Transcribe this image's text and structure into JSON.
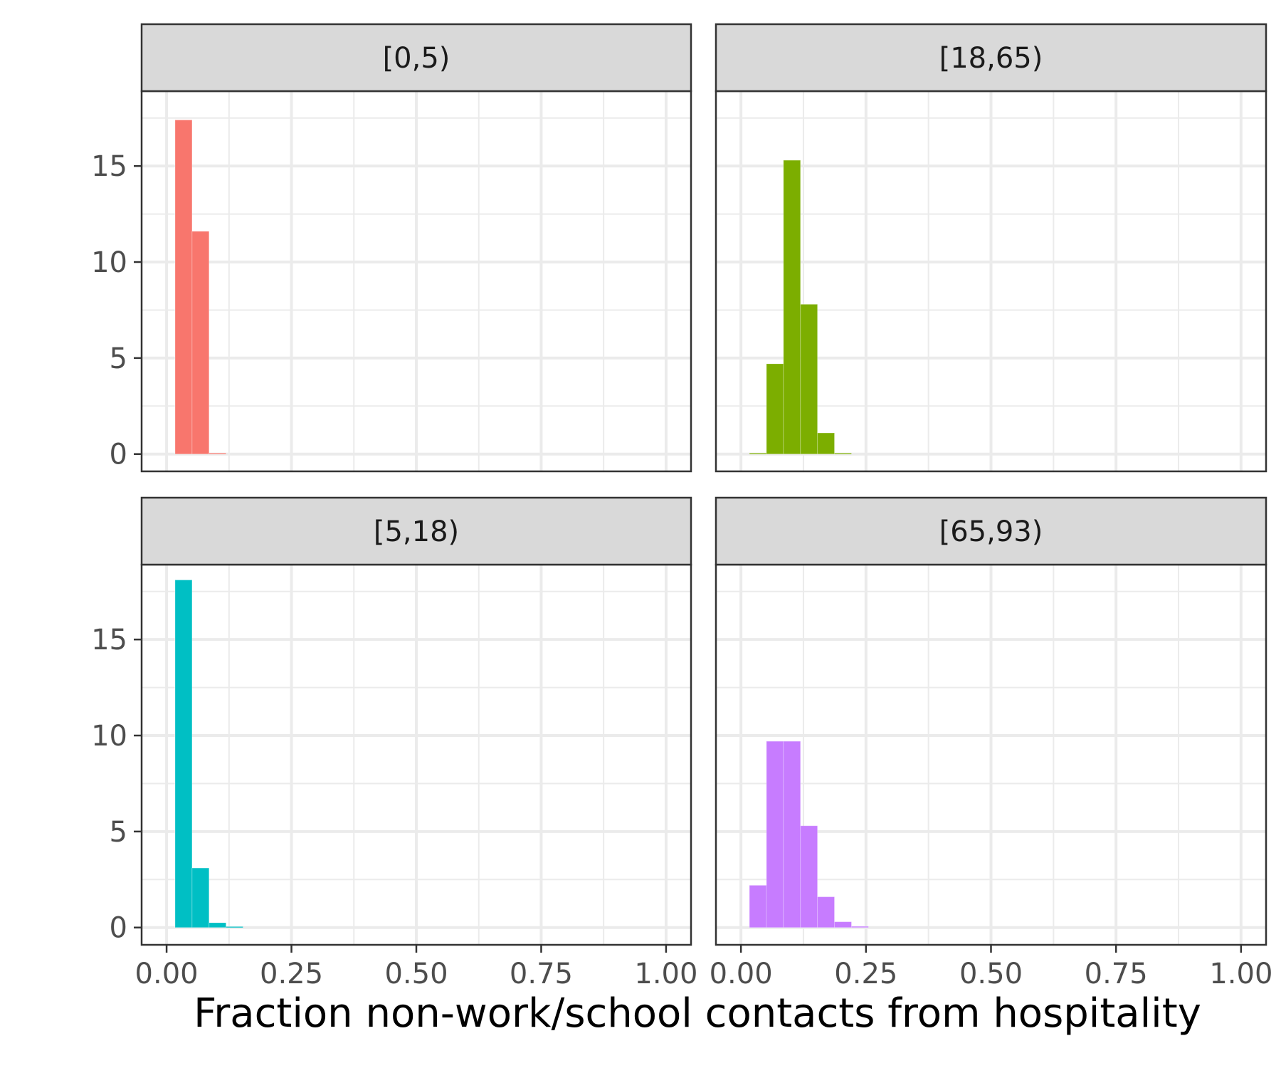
{
  "chart_data": {
    "type": "bar",
    "chart_kind": "faceted histogram",
    "xlabel": "Fraction non-work/school contacts from hospitality",
    "ylabel": "",
    "xlim": [
      -0.05,
      1.05
    ],
    "ylim": [
      -0.9,
      18.9
    ],
    "x_ticks": [
      "0.00",
      "0.25",
      "0.50",
      "0.75",
      "1.00"
    ],
    "y_ticks": [
      "0",
      "5",
      "10",
      "15"
    ],
    "grid": true,
    "bin_width": 0.034,
    "facets": [
      {
        "label": "[0,5)",
        "color": "#F8766D",
        "bins": [
          {
            "x_start": 0.017,
            "x_end": 0.051,
            "count": 17.4
          },
          {
            "x_start": 0.051,
            "x_end": 0.085,
            "count": 11.6
          },
          {
            "x_start": 0.085,
            "x_end": 0.119,
            "count": 0.05
          }
        ]
      },
      {
        "label": "[18,65)",
        "color": "#7CAE00",
        "bins": [
          {
            "x_start": 0.017,
            "x_end": 0.051,
            "count": 0.05
          },
          {
            "x_start": 0.051,
            "x_end": 0.085,
            "count": 4.7
          },
          {
            "x_start": 0.085,
            "x_end": 0.119,
            "count": 15.3
          },
          {
            "x_start": 0.119,
            "x_end": 0.153,
            "count": 7.8
          },
          {
            "x_start": 0.153,
            "x_end": 0.187,
            "count": 1.1
          },
          {
            "x_start": 0.187,
            "x_end": 0.221,
            "count": 0.05
          }
        ]
      },
      {
        "label": "[5,18)",
        "color": "#00BFC4",
        "bins": [
          {
            "x_start": 0.017,
            "x_end": 0.051,
            "count": 18.1
          },
          {
            "x_start": 0.051,
            "x_end": 0.085,
            "count": 3.1
          },
          {
            "x_start": 0.085,
            "x_end": 0.119,
            "count": 0.25
          },
          {
            "x_start": 0.119,
            "x_end": 0.153,
            "count": 0.05
          }
        ]
      },
      {
        "label": "[65,93)",
        "color": "#C77CFF",
        "bins": [
          {
            "x_start": 0.017,
            "x_end": 0.051,
            "count": 2.2
          },
          {
            "x_start": 0.051,
            "x_end": 0.085,
            "count": 9.7
          },
          {
            "x_start": 0.085,
            "x_end": 0.119,
            "count": 9.7
          },
          {
            "x_start": 0.119,
            "x_end": 0.153,
            "count": 5.3
          },
          {
            "x_start": 0.153,
            "x_end": 0.187,
            "count": 1.6
          },
          {
            "x_start": 0.187,
            "x_end": 0.221,
            "count": 0.3
          },
          {
            "x_start": 0.221,
            "x_end": 0.255,
            "count": 0.06
          }
        ]
      }
    ]
  }
}
